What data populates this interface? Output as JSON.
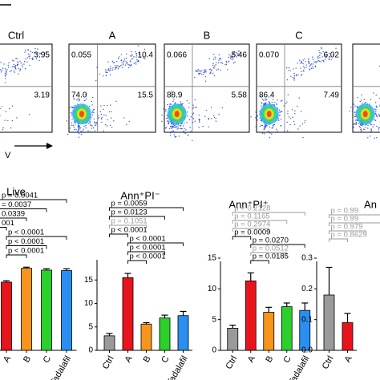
{
  "flow_cytometry": {
    "x_axis_label": "V",
    "panels": [
      {
        "label": "Ctrl",
        "quadrants": {
          "upper_right": "3.95",
          "lower_right": "3.19"
        }
      },
      {
        "label": "A",
        "quadrants": {
          "upper_left": "0.055",
          "upper_right": "10.4",
          "lower_left": "74.0",
          "lower_right": "15.5"
        }
      },
      {
        "label": "B",
        "quadrants": {
          "upper_left": "0.066",
          "upper_right": "5.46",
          "lower_left": "88.9",
          "lower_right": "5.58"
        }
      },
      {
        "label": "C",
        "quadrants": {
          "upper_left": "0.070",
          "upper_right": "6.02",
          "lower_left": "86.4",
          "lower_right": "7.49"
        }
      }
    ]
  },
  "chart_data": [
    {
      "type": "bar",
      "title": "Live",
      "categories": [
        "A",
        "B",
        "C",
        "Tadalafil"
      ],
      "values": [
        74,
        89,
        87,
        86.5
      ],
      "errors": [
        1.5,
        1.2,
        1.5,
        2
      ],
      "colors": [
        "#e8141c",
        "#f7941d",
        "#2bd02b",
        "#2a8ff0"
      ],
      "ylim": [
        0,
        100
      ],
      "annotations": [
        {
          "label": "p = 0.0041",
          "color": "#000"
        },
        {
          "label": "= 0.0037",
          "color": "#000"
        },
        {
          "label": "0.0339",
          "color": "#000"
        },
        {
          "label": "001",
          "color": "#000"
        },
        {
          "label": "p < 0.0001",
          "color": "#000"
        },
        {
          "label": "p < 0.0001",
          "color": "#000"
        },
        {
          "label": "p < 0.0001",
          "color": "#000"
        }
      ]
    },
    {
      "type": "bar",
      "title": "Ann⁺PI⁻",
      "categories": [
        "Ctrl",
        "A",
        "B",
        "C",
        "Tadalafil"
      ],
      "values": [
        3.1,
        15.5,
        5.6,
        6.9,
        7.4
      ],
      "errors": [
        0.5,
        0.9,
        0.3,
        0.6,
        0.9
      ],
      "colors": [
        "#9a9a9a",
        "#e8141c",
        "#f7941d",
        "#2bd02b",
        "#2a8ff0"
      ],
      "ylim": [
        0,
        20
      ],
      "yticks": [
        0,
        5,
        10,
        15
      ],
      "annotations": [
        {
          "label": "p = 0.0059",
          "color": "#000"
        },
        {
          "label": "p = 0.0123",
          "color": "#000"
        },
        {
          "label": "p = 0.1051",
          "color": "#999"
        },
        {
          "label": "p < 0.0001",
          "color": "#000"
        },
        {
          "label": "p < 0.0001",
          "color": "#000"
        },
        {
          "label": "p < 0.0001",
          "color": "#000"
        },
        {
          "label": "p < 0.0001",
          "color": "#000"
        }
      ]
    },
    {
      "type": "bar",
      "title": "Ann⁺PI⁺",
      "categories": [
        "Ctrl",
        "A",
        "B",
        "C",
        "Tadalafil"
      ],
      "values": [
        3.6,
        11.3,
        6.2,
        7.1,
        6.5
      ],
      "errors": [
        0.5,
        1.3,
        0.8,
        0.6,
        1.2
      ],
      "colors": [
        "#9a9a9a",
        "#e8141c",
        "#f7941d",
        "#2bd02b",
        "#2a8ff0"
      ],
      "ylim": [
        0,
        15
      ],
      "yticks": [
        0,
        5,
        10,
        15
      ],
      "annotations": [
        {
          "label": "p = 0.2128",
          "color": "#999"
        },
        {
          "label": "p = 0.1165",
          "color": "#999"
        },
        {
          "label": "p = 0.2974",
          "color": "#999"
        },
        {
          "label": "p = 0.0009",
          "color": "#000"
        },
        {
          "label": "p = 0.0270",
          "color": "#000"
        },
        {
          "label": "p = 0.0512",
          "color": "#999"
        },
        {
          "label": "p = 0.0185",
          "color": "#000"
        }
      ]
    },
    {
      "type": "bar",
      "title": "An",
      "categories": [
        "Ctrl",
        "A"
      ],
      "values": [
        0.18,
        0.09
      ],
      "errors": [
        0.09,
        0.03
      ],
      "colors": [
        "#9a9a9a",
        "#e8141c"
      ],
      "ylim": [
        0,
        0.3
      ],
      "yticks": [
        {
          "value": 0,
          "label": "0.0"
        },
        0.1,
        0.2,
        0.3
      ],
      "annotations": [
        {
          "label": "p = 0.99",
          "color": "#999"
        },
        {
          "label": "p = 0.99",
          "color": "#999"
        },
        {
          "label": "p = 0.979",
          "color": "#999"
        },
        {
          "label": "p = 0.8629",
          "color": "#999"
        }
      ]
    }
  ]
}
